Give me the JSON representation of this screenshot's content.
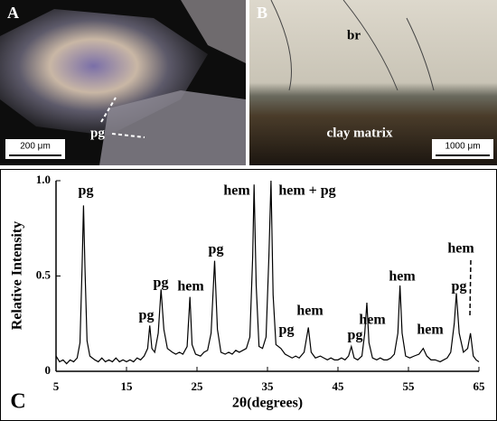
{
  "panels": {
    "a_label": "A",
    "a_pg": "pg",
    "a_scale": "200 μm",
    "b_label": "B",
    "b_br": "br",
    "b_clay": "clay matrix",
    "b_scale": "1000 μm",
    "c_label": "C"
  },
  "chart_data": {
    "type": "line",
    "color": "#000000",
    "ylabel": "Relative Intensity",
    "xlabel": "2θ(degrees)",
    "xlim": [
      5,
      65
    ],
    "xticks": [
      5,
      15,
      25,
      35,
      45,
      55,
      65
    ],
    "ylim": [
      0,
      1
    ],
    "yticks": [
      0,
      0.5,
      {
        "value": 1,
        "label": "1.0"
      }
    ],
    "annotations": [
      "pg",
      "pg",
      "pg",
      "hem",
      "pg",
      "hem",
      "hem + pg",
      "pg",
      "hem",
      "pg",
      "hem",
      "hem",
      "hem",
      "pg",
      "hem"
    ],
    "x": [
      5,
      5.5,
      6,
      6.5,
      7,
      7.5,
      8,
      8.4,
      8.7,
      8.9,
      9.1,
      9.4,
      9.8,
      10.5,
      11,
      11.5,
      12,
      12.5,
      13,
      13.5,
      14,
      14.5,
      15,
      15.5,
      16,
      16.5,
      17,
      17.5,
      18,
      18.3,
      18.6,
      19,
      19.5,
      19.9,
      20.3,
      20.8,
      21.5,
      22,
      22.5,
      23,
      23.6,
      24,
      24.3,
      24.8,
      25.5,
      26,
      26.5,
      27,
      27.5,
      27.9,
      28.4,
      29,
      29.5,
      30,
      30.5,
      31,
      31.5,
      32,
      32.5,
      32.9,
      33.1,
      33.4,
      33.8,
      34.3,
      34.8,
      35.2,
      35.5,
      35.8,
      36.2,
      36.9,
      37.5,
      38,
      38.5,
      39,
      39.5,
      40.2,
      40.8,
      41.2,
      41.8,
      42.5,
      43,
      43.5,
      44,
      44.5,
      45,
      45.5,
      46,
      46.5,
      46.9,
      47.3,
      47.8,
      48.4,
      48.8,
      49.1,
      49.4,
      49.9,
      50.5,
      51,
      51.5,
      52,
      52.5,
      53,
      53.5,
      53.8,
      54.1,
      54.6,
      55.2,
      55.8,
      56.5,
      57.1,
      57.6,
      58.2,
      58.8,
      59.5,
      60,
      60.5,
      61,
      61.5,
      61.8,
      62.2,
      62.8,
      63.4,
      63.8,
      64.2,
      64.6,
      65
    ],
    "values": [
      0.08,
      0.05,
      0.06,
      0.04,
      0.06,
      0.05,
      0.07,
      0.15,
      0.55,
      0.87,
      0.55,
      0.16,
      0.08,
      0.06,
      0.05,
      0.07,
      0.05,
      0.06,
      0.05,
      0.07,
      0.05,
      0.06,
      0.05,
      0.06,
      0.05,
      0.07,
      0.06,
      0.08,
      0.12,
      0.24,
      0.12,
      0.1,
      0.2,
      0.43,
      0.22,
      0.12,
      0.1,
      0.09,
      0.1,
      0.09,
      0.13,
      0.39,
      0.14,
      0.09,
      0.08,
      0.1,
      0.11,
      0.2,
      0.58,
      0.22,
      0.1,
      0.09,
      0.1,
      0.09,
      0.11,
      0.1,
      0.11,
      0.12,
      0.18,
      0.6,
      0.98,
      0.45,
      0.13,
      0.12,
      0.18,
      0.6,
      1.0,
      0.4,
      0.14,
      0.12,
      0.09,
      0.08,
      0.07,
      0.08,
      0.07,
      0.1,
      0.23,
      0.1,
      0.07,
      0.08,
      0.07,
      0.06,
      0.07,
      0.06,
      0.06,
      0.07,
      0.06,
      0.08,
      0.13,
      0.07,
      0.06,
      0.08,
      0.2,
      0.36,
      0.15,
      0.07,
      0.06,
      0.07,
      0.06,
      0.06,
      0.07,
      0.09,
      0.2,
      0.45,
      0.2,
      0.08,
      0.07,
      0.08,
      0.09,
      0.12,
      0.08,
      0.06,
      0.06,
      0.05,
      0.06,
      0.07,
      0.1,
      0.25,
      0.41,
      0.2,
      0.1,
      0.12,
      0.2,
      0.08,
      0.06,
      0.05
    ]
  }
}
